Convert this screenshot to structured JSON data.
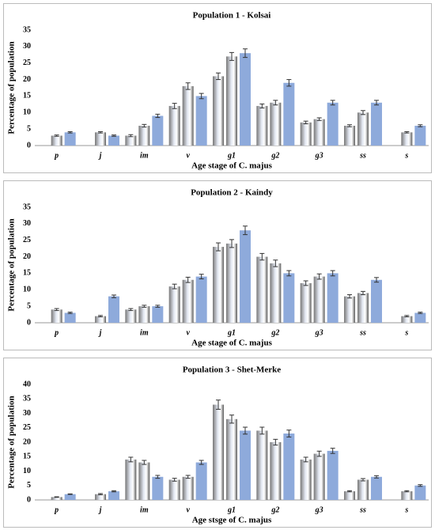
{
  "chart_data": [
    {
      "type": "bar",
      "title": "Population 1 - Kolsai",
      "xlabel": "Age stage of C. majus",
      "ylabel": "Percentage of population",
      "categories": [
        "p",
        "j",
        "im",
        "v",
        "g1",
        "g2",
        "g3",
        "ss",
        "s"
      ],
      "series": [
        {
          "color": "#e4e9f3",
          "gradient": true,
          "values": [
            null,
            null,
            3,
            12,
            21,
            12,
            7,
            6,
            null
          ],
          "errors": [
            null,
            null,
            0.3,
            0.8,
            1,
            0.6,
            0.4,
            0.3,
            null
          ]
        },
        {
          "color": "#e4e9f3",
          "gradient": true,
          "values": [
            3,
            4,
            6,
            18,
            27,
            13,
            8,
            10,
            4
          ],
          "errors": [
            0.2,
            0.2,
            0.4,
            1,
            1.2,
            0.7,
            0.4,
            0.6,
            0.2
          ]
        },
        {
          "color": "#8eaadb",
          "gradient": false,
          "values": [
            4,
            3,
            9,
            15,
            28,
            19,
            13,
            13,
            6
          ],
          "errors": [
            0.2,
            0.2,
            0.5,
            0.8,
            1.3,
            1,
            0.7,
            0.7,
            0.3
          ]
        }
      ],
      "ylim": [
        0,
        35
      ],
      "yticks": [
        0,
        5,
        10,
        15,
        20,
        25,
        30,
        35
      ]
    },
    {
      "type": "bar",
      "title": "Population 2 - Kaindy",
      "xlabel": "Age stage of C. majus",
      "ylabel": "Percentage of population",
      "categories": [
        "p",
        "j",
        "im",
        "v",
        "g1",
        "g2",
        "g3",
        "ss",
        "s"
      ],
      "series": [
        {
          "color": "#e4e9f3",
          "gradient": true,
          "values": [
            null,
            null,
            4,
            11,
            23,
            20,
            12,
            8,
            null
          ],
          "errors": [
            null,
            null,
            0.3,
            0.7,
            1.2,
            1,
            0.7,
            0.5,
            null
          ]
        },
        {
          "color": "#e4e9f3",
          "gradient": true,
          "values": [
            4,
            2,
            5,
            13,
            24,
            18,
            14,
            9,
            2
          ],
          "errors": [
            0.3,
            0.2,
            0.3,
            0.8,
            1.2,
            1,
            0.8,
            0.5,
            0.2
          ]
        },
        {
          "color": "#8eaadb",
          "gradient": false,
          "values": [
            3,
            8,
            5,
            14,
            28,
            15,
            15,
            13,
            3
          ],
          "errors": [
            0.2,
            0.4,
            0.3,
            0.7,
            1.3,
            0.8,
            0.8,
            0.7,
            0.2
          ]
        }
      ],
      "ylim": [
        0,
        35
      ],
      "yticks": [
        0,
        5,
        10,
        15,
        20,
        25,
        30,
        35
      ]
    },
    {
      "type": "bar",
      "title": "Population 3 - Shet-Merke",
      "xlabel": "Age stsge of C. majus",
      "ylabel": "Percentage of population",
      "categories": [
        "p",
        "j",
        "im",
        "v",
        "g1",
        "g2",
        "g3",
        "ss",
        "s"
      ],
      "series": [
        {
          "color": "#e4e9f3",
          "gradient": true,
          "values": [
            null,
            null,
            14,
            7,
            33,
            24,
            14,
            3,
            null
          ],
          "errors": [
            null,
            null,
            0.8,
            0.5,
            1.6,
            1.2,
            0.8,
            0.2,
            null
          ]
        },
        {
          "color": "#e4e9f3",
          "gradient": true,
          "values": [
            1,
            2,
            13,
            8,
            28,
            20,
            16,
            7,
            3
          ],
          "errors": [
            0.1,
            0.2,
            0.7,
            0.5,
            1.4,
            1,
            0.9,
            0.4,
            0.2
          ]
        },
        {
          "color": "#8eaadb",
          "gradient": false,
          "values": [
            2,
            3,
            8,
            13,
            24,
            23,
            17,
            8,
            5
          ],
          "errors": [
            0.1,
            0.2,
            0.5,
            0.7,
            1.2,
            1.2,
            0.9,
            0.4,
            0.3
          ]
        }
      ],
      "ylim": [
        0,
        40
      ],
      "yticks": [
        0,
        5,
        10,
        15,
        20,
        25,
        30,
        35,
        40
      ]
    }
  ]
}
